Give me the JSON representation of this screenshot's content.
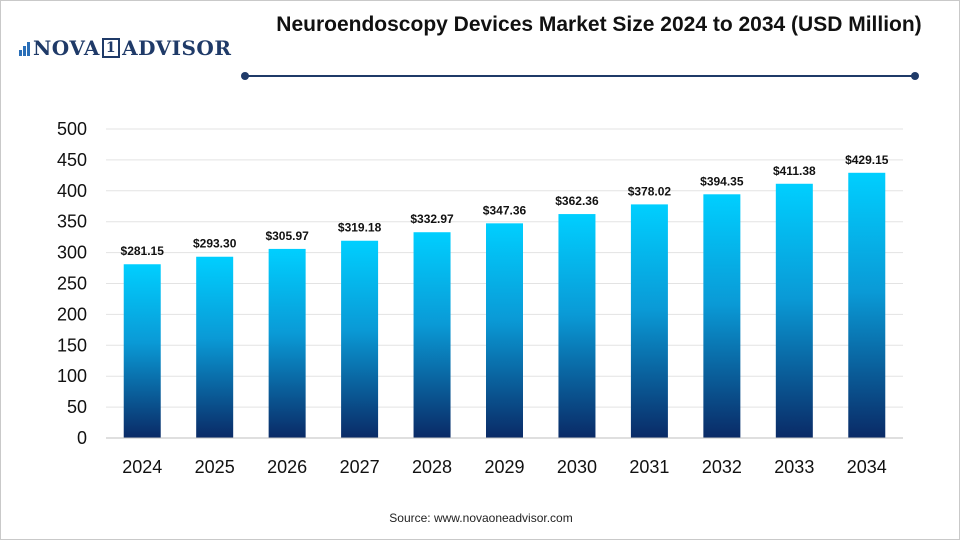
{
  "logo": {
    "text_left": "NOVA",
    "text_num": "1",
    "text_right": "ADVISOR"
  },
  "title": "Neuroendoscopy Devices Market Size 2024 to 2034 (USD Million)",
  "source": "Source: www.novaoneadvisor.com",
  "colors": {
    "bar_top": "#00cfff",
    "bar_bottom": "#0a2a66",
    "title_rule": "#1f3a68",
    "grid": "#e3e3e3"
  },
  "chart_data": {
    "type": "bar",
    "title": "Neuroendoscopy Devices Market Size 2024 to 2034 (USD Million)",
    "xlabel": "",
    "ylabel": "",
    "categories": [
      "2024",
      "2025",
      "2026",
      "2027",
      "2028",
      "2029",
      "2030",
      "2031",
      "2032",
      "2033",
      "2034"
    ],
    "values": [
      281.15,
      293.3,
      305.97,
      319.18,
      332.97,
      347.36,
      362.36,
      378.02,
      394.35,
      411.38,
      429.15
    ],
    "value_labels": [
      "$281.15",
      "$293.30",
      "$305.97",
      "$319.18",
      "$332.97",
      "$347.36",
      "$362.36",
      "$378.02",
      "$394.35",
      "$411.38",
      "$429.15"
    ],
    "ylim": [
      0,
      500
    ],
    "yticks": [
      0,
      50,
      100,
      150,
      200,
      250,
      300,
      350,
      400,
      450,
      500
    ],
    "grid": true,
    "legend": "none"
  }
}
